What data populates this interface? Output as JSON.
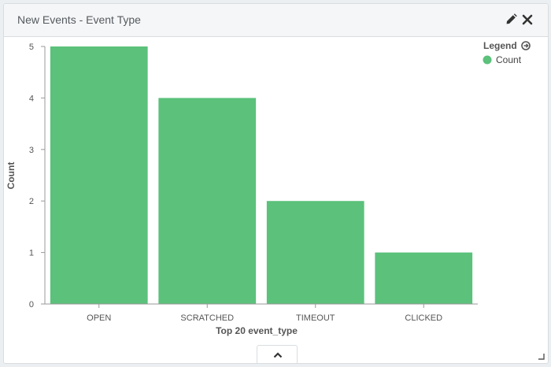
{
  "panel": {
    "title": "New Events - Event Type",
    "edit_icon": "pencil-icon",
    "close_icon": "close-icon",
    "collapse_icon": "chevron-up-icon",
    "resize_icon": "resize-corner-icon"
  },
  "legend": {
    "title": "Legend",
    "toggle_icon": "arrow-circle-right-icon",
    "items": [
      {
        "label": "Count",
        "color": "#5bc17b"
      }
    ]
  },
  "chart_data": {
    "type": "bar",
    "categories": [
      "OPEN",
      "SCRATCHED",
      "TIMEOUT",
      "CLICKED"
    ],
    "series": [
      {
        "name": "Count",
        "values": [
          5,
          4,
          2,
          1
        ]
      }
    ],
    "xlabel": "Top 20 event_type",
    "ylabel": "Count",
    "ylim": [
      0,
      5
    ],
    "yticks": [
      0,
      1,
      2,
      3,
      4,
      5
    ],
    "grid": false,
    "legend_position": "top-right",
    "bar_color": "#5bc17b"
  }
}
